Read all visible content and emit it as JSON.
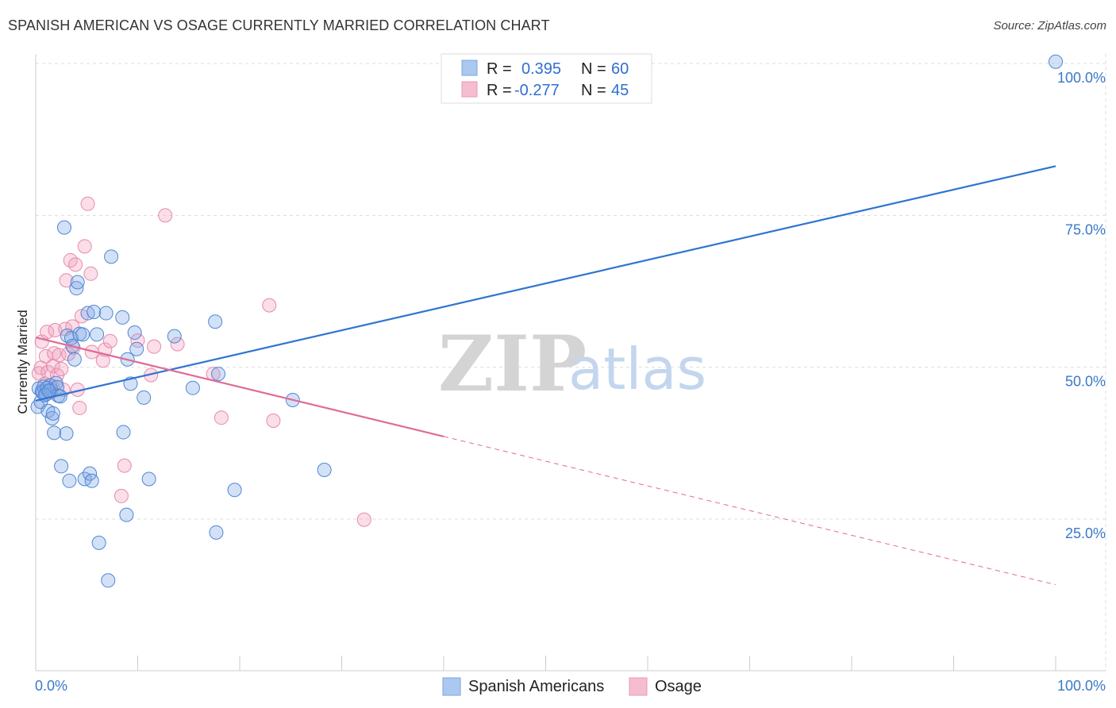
{
  "header": {
    "title": "SPANISH AMERICAN VS OSAGE CURRENTLY MARRIED CORRELATION CHART",
    "source": "Source: ZipAtlas.com"
  },
  "watermark": {
    "zip": "ZIP",
    "atlas": "atlas"
  },
  "legend_box": {
    "rows": [
      {
        "r_label": "R =",
        "r_value": "0.395",
        "n_label": "N =",
        "n_value": "60",
        "color": "#aac8f0"
      },
      {
        "r_label": "R =",
        "r_value": "-0.277",
        "n_label": "N =",
        "n_value": "45",
        "color": "#f6bcd0"
      }
    ]
  },
  "colors": {
    "blue_fill": "rgba(130,170,230,0.35)",
    "blue_stroke": "#4f86d6",
    "blue_line": "#2f74d0",
    "pink_fill": "rgba(240,160,190,0.35)",
    "pink_stroke": "#e88aac",
    "pink_line": "#e06b98",
    "grid": "#dddddd",
    "axis_text": "#3a78c9"
  },
  "chart_data": {
    "type": "scatter",
    "title": "SPANISH AMERICAN VS OSAGE CURRENTLY MARRIED CORRELATION CHART",
    "xlabel": "",
    "ylabel": "Currently Married",
    "xlim": [
      0,
      100
    ],
    "ylim": [
      0,
      105
    ],
    "x_tick_labels": [
      "0.0%",
      "100.0%"
    ],
    "y_ticks": [
      25,
      50,
      75,
      100
    ],
    "y_tick_labels": [
      "25.0%",
      "50.0%",
      "75.0%",
      "100.0%"
    ],
    "grid": true,
    "legend_position": "bottom-center",
    "series": [
      {
        "name": "Spanish Americans",
        "r": 0.395,
        "n": 60,
        "trend": {
          "x": [
            0,
            100
          ],
          "y": [
            44.5,
            83.1
          ]
        },
        "points": [
          [
            0.2,
            43.5
          ],
          [
            0.3,
            46.5
          ],
          [
            0.5,
            44.3
          ],
          [
            0.6,
            46.0
          ],
          [
            0.7,
            45.8
          ],
          [
            0.8,
            46.8
          ],
          [
            1.0,
            45.6
          ],
          [
            1.2,
            42.8
          ],
          [
            1.4,
            47.0
          ],
          [
            1.5,
            46.3
          ],
          [
            1.6,
            41.6
          ],
          [
            1.7,
            42.4
          ],
          [
            1.8,
            39.2
          ],
          [
            2.0,
            47.4
          ],
          [
            2.1,
            46.7
          ],
          [
            2.2,
            45.3
          ],
          [
            2.4,
            45.2
          ],
          [
            2.5,
            33.7
          ],
          [
            2.8,
            73.0
          ],
          [
            3.0,
            39.1
          ],
          [
            3.1,
            55.2
          ],
          [
            3.3,
            31.3
          ],
          [
            3.5,
            54.8
          ],
          [
            3.6,
            53.5
          ],
          [
            3.8,
            51.3
          ],
          [
            4.0,
            63.0
          ],
          [
            4.1,
            64.0
          ],
          [
            4.3,
            55.5
          ],
          [
            4.6,
            55.4
          ],
          [
            4.8,
            31.6
          ],
          [
            5.1,
            58.9
          ],
          [
            5.3,
            32.5
          ],
          [
            5.5,
            31.3
          ],
          [
            5.7,
            59.1
          ],
          [
            6.0,
            55.4
          ],
          [
            6.2,
            21.1
          ],
          [
            6.9,
            58.9
          ],
          [
            7.1,
            14.9
          ],
          [
            7.4,
            68.2
          ],
          [
            8.5,
            58.2
          ],
          [
            8.6,
            39.3
          ],
          [
            8.9,
            25.7
          ],
          [
            9.0,
            51.3
          ],
          [
            9.3,
            47.3
          ],
          [
            9.7,
            55.7
          ],
          [
            9.9,
            53.0
          ],
          [
            10.6,
            45.0
          ],
          [
            11.1,
            31.6
          ],
          [
            13.6,
            55.1
          ],
          [
            15.4,
            46.6
          ],
          [
            17.6,
            57.5
          ],
          [
            17.7,
            22.8
          ],
          [
            17.9,
            48.9
          ],
          [
            19.5,
            29.8
          ],
          [
            25.2,
            44.6
          ],
          [
            28.3,
            33.1
          ],
          [
            100.0,
            100.3
          ],
          [
            1.1,
            46.6
          ],
          [
            0.9,
            45.4
          ],
          [
            1.3,
            46.1
          ]
        ]
      },
      {
        "name": "Osage",
        "r": -0.277,
        "n": 45,
        "trend": {
          "x": [
            0,
            40
          ],
          "y": [
            54.9,
            38.6
          ]
        },
        "trend_dashed": {
          "x": [
            40,
            100
          ],
          "y": [
            38.6,
            14.2
          ]
        },
        "points": [
          [
            0.3,
            49.0
          ],
          [
            0.5,
            49.9
          ],
          [
            0.6,
            54.2
          ],
          [
            0.9,
            47.3
          ],
          [
            1.0,
            51.8
          ],
          [
            1.1,
            55.8
          ],
          [
            1.2,
            49.2
          ],
          [
            1.4,
            45.8
          ],
          [
            1.6,
            46.9
          ],
          [
            1.7,
            50.2
          ],
          [
            1.8,
            52.3
          ],
          [
            1.9,
            56.1
          ],
          [
            2.1,
            48.7
          ],
          [
            2.3,
            52.0
          ],
          [
            2.5,
            49.7
          ],
          [
            2.7,
            46.3
          ],
          [
            2.9,
            56.3
          ],
          [
            3.0,
            64.3
          ],
          [
            3.2,
            52.2
          ],
          [
            3.4,
            67.6
          ],
          [
            3.6,
            56.7
          ],
          [
            3.7,
            53.2
          ],
          [
            3.9,
            66.9
          ],
          [
            4.1,
            46.3
          ],
          [
            4.3,
            43.3
          ],
          [
            4.5,
            58.4
          ],
          [
            4.8,
            69.9
          ],
          [
            5.1,
            76.9
          ],
          [
            5.4,
            65.4
          ],
          [
            5.5,
            52.5
          ],
          [
            6.6,
            51.1
          ],
          [
            6.8,
            52.9
          ],
          [
            7.3,
            54.3
          ],
          [
            8.4,
            28.8
          ],
          [
            8.7,
            33.8
          ],
          [
            10.0,
            54.4
          ],
          [
            11.3,
            48.7
          ],
          [
            11.6,
            53.4
          ],
          [
            12.7,
            75.0
          ],
          [
            13.9,
            53.8
          ],
          [
            17.4,
            48.9
          ],
          [
            18.2,
            41.7
          ],
          [
            22.9,
            60.2
          ],
          [
            23.3,
            41.2
          ],
          [
            32.2,
            24.9
          ]
        ]
      }
    ]
  },
  "bottom_legend": {
    "items": [
      {
        "label": "Spanish Americans",
        "color": "#aac8f0"
      },
      {
        "label": "Osage",
        "color": "#f6bcd0"
      }
    ]
  }
}
